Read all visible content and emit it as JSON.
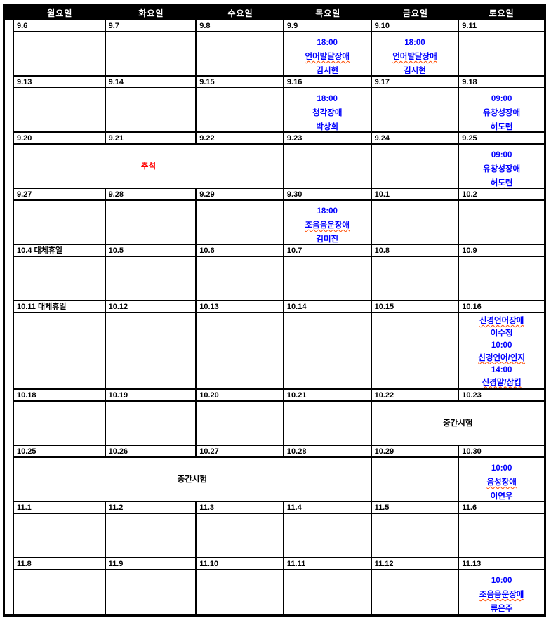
{
  "colors": {
    "appointment_blue": "#0000ff",
    "holiday_red": "#ff0000",
    "text_black": "#000000",
    "header_bg": "#000000",
    "header_text": "#ffffff",
    "squiggle": "#ff4a00",
    "border": "#000000"
  },
  "header": {
    "days": [
      "월요일",
      "화요일",
      "수요일",
      "목요일",
      "금요일",
      "토요일"
    ]
  },
  "weeks": [
    {
      "dates": [
        {
          "text": "9.6",
          "color": "black"
        },
        {
          "text": "9.7",
          "color": "black"
        },
        {
          "text": "9.8",
          "color": "black"
        },
        {
          "text": "9.9",
          "color": "black"
        },
        {
          "text": "9.10",
          "color": "black"
        },
        {
          "text": "9.11",
          "color": "blue"
        }
      ],
      "cells": [
        {
          "span": 1,
          "lines": []
        },
        {
          "span": 1,
          "lines": []
        },
        {
          "span": 1,
          "lines": []
        },
        {
          "span": 1,
          "lines": [
            {
              "text": "18:00",
              "color": "blue"
            },
            {
              "text": "언어발달장애",
              "color": "blue",
              "squiggle": true
            },
            {
              "text": "김시현",
              "color": "blue"
            }
          ]
        },
        {
          "span": 1,
          "lines": [
            {
              "text": "18:00",
              "color": "blue"
            },
            {
              "text": "언어발달장애",
              "color": "blue",
              "squiggle": true
            },
            {
              "text": "김시현",
              "color": "blue"
            }
          ]
        },
        {
          "span": 1,
          "lines": []
        }
      ]
    },
    {
      "dates": [
        {
          "text": "9.13",
          "color": "black"
        },
        {
          "text": "9.14",
          "color": "black"
        },
        {
          "text": "9.15",
          "color": "black"
        },
        {
          "text": "9.16",
          "color": "black"
        },
        {
          "text": "9.17",
          "color": "black"
        },
        {
          "text": "9.18",
          "color": "blue"
        }
      ],
      "cells": [
        {
          "span": 1,
          "lines": []
        },
        {
          "span": 1,
          "lines": []
        },
        {
          "span": 1,
          "lines": []
        },
        {
          "span": 1,
          "lines": [
            {
              "text": "18:00",
              "color": "blue"
            },
            {
              "text": "청각장애",
              "color": "blue"
            },
            {
              "text": "박상희",
              "color": "blue"
            }
          ]
        },
        {
          "span": 1,
          "lines": []
        },
        {
          "span": 1,
          "lines": [
            {
              "text": "09:00",
              "color": "blue"
            },
            {
              "text": "유창성장애",
              "color": "blue"
            },
            {
              "text": "허도련",
              "color": "blue",
              "squiggle": true
            }
          ]
        }
      ]
    },
    {
      "dates": [
        {
          "text": "9.20",
          "color": "red"
        },
        {
          "text": "9.21",
          "color": "red"
        },
        {
          "text": "9.22",
          "color": "red"
        },
        {
          "text": "9.23",
          "color": "black"
        },
        {
          "text": "9.24",
          "color": "black"
        },
        {
          "text": "9.25",
          "color": "blue"
        }
      ],
      "cells": [
        {
          "span": 3,
          "center": true,
          "lines": [
            {
              "text": "추석",
              "color": "red"
            }
          ]
        },
        {
          "span": 1,
          "lines": []
        },
        {
          "span": 1,
          "lines": []
        },
        {
          "span": 1,
          "lines": [
            {
              "text": "09:00",
              "color": "blue"
            },
            {
              "text": "유창성장애",
              "color": "blue"
            },
            {
              "text": "허도련",
              "color": "blue",
              "squiggle": true
            }
          ]
        }
      ]
    },
    {
      "dates": [
        {
          "text": "9.27",
          "color": "black"
        },
        {
          "text": "9.28",
          "color": "black"
        },
        {
          "text": "9.29",
          "color": "black"
        },
        {
          "text": "9.30",
          "color": "black"
        },
        {
          "text": "10.1",
          "color": "black"
        },
        {
          "text": "10.2",
          "color": "blue"
        }
      ],
      "cells": [
        {
          "span": 1,
          "lines": []
        },
        {
          "span": 1,
          "lines": []
        },
        {
          "span": 1,
          "lines": []
        },
        {
          "span": 1,
          "lines": [
            {
              "text": "18:00",
              "color": "blue"
            },
            {
              "text": "조음음운장애",
              "color": "blue",
              "squiggle": true
            },
            {
              "text": "김미진",
              "color": "blue"
            }
          ]
        },
        {
          "span": 1,
          "lines": []
        },
        {
          "span": 1,
          "lines": []
        }
      ]
    },
    {
      "dates": [
        {
          "text": "10.4  대체휴일",
          "color": "red"
        },
        {
          "text": "10.5",
          "color": "black"
        },
        {
          "text": "10.6",
          "color": "black"
        },
        {
          "text": "10.7",
          "color": "black"
        },
        {
          "text": "10.8",
          "color": "black"
        },
        {
          "text": "10.9",
          "color": "blue"
        }
      ],
      "cells": [
        {
          "span": 1,
          "lines": []
        },
        {
          "span": 1,
          "lines": []
        },
        {
          "span": 1,
          "lines": []
        },
        {
          "span": 1,
          "lines": []
        },
        {
          "span": 1,
          "lines": []
        },
        {
          "span": 1,
          "lines": []
        }
      ]
    },
    {
      "tall": true,
      "dates": [
        {
          "text": "10.11  대체휴일",
          "color": "red"
        },
        {
          "text": "10.12",
          "color": "black"
        },
        {
          "text": "10.13",
          "color": "black"
        },
        {
          "text": "10.14",
          "color": "black"
        },
        {
          "text": "10.15",
          "color": "black"
        },
        {
          "text": "10.16",
          "color": "blue"
        }
      ],
      "cells": [
        {
          "span": 1,
          "lines": []
        },
        {
          "span": 1,
          "lines": []
        },
        {
          "span": 1,
          "lines": []
        },
        {
          "span": 1,
          "lines": []
        },
        {
          "span": 1,
          "lines": []
        },
        {
          "span": 1,
          "lines": [
            {
              "text": "신경언어장애",
              "color": "blue",
              "squiggle": true
            },
            {
              "text": "이수정",
              "color": "blue"
            },
            {
              "text": "10:00",
              "color": "blue"
            },
            {
              "text": "신경언어/인지",
              "color": "blue",
              "squiggle": true
            },
            {
              "text": "14:00",
              "color": "blue"
            },
            {
              "text": "신경말/삼킴",
              "color": "blue",
              "squiggle": true
            }
          ]
        }
      ]
    },
    {
      "dates": [
        {
          "text": "10.18",
          "color": "black"
        },
        {
          "text": "10.19",
          "color": "black"
        },
        {
          "text": "10.20",
          "color": "black"
        },
        {
          "text": "10.21",
          "color": "black"
        },
        {
          "text": "10.22",
          "color": "black"
        },
        {
          "text": "10.23",
          "color": "blue"
        }
      ],
      "cells": [
        {
          "span": 1,
          "lines": []
        },
        {
          "span": 1,
          "lines": []
        },
        {
          "span": 1,
          "lines": []
        },
        {
          "span": 1,
          "lines": []
        },
        {
          "span": 2,
          "center": true,
          "lines": [
            {
              "text": "중간시험",
              "color": "black"
            }
          ]
        }
      ]
    },
    {
      "dates": [
        {
          "text": "10.25",
          "color": "black"
        },
        {
          "text": "10.26",
          "color": "black"
        },
        {
          "text": "10.27",
          "color": "black"
        },
        {
          "text": "10.28",
          "color": "black"
        },
        {
          "text": "10.29",
          "color": "black"
        },
        {
          "text": "10.30",
          "color": "blue"
        }
      ],
      "cells": [
        {
          "span": 4,
          "center": true,
          "lines": [
            {
              "text": "중간시험",
              "color": "black"
            }
          ]
        },
        {
          "span": 1,
          "lines": []
        },
        {
          "span": 1,
          "lines": [
            {
              "text": "10:00",
              "color": "blue"
            },
            {
              "text": "음성장애",
              "color": "blue",
              "squiggle": true
            },
            {
              "text": "이연우",
              "color": "blue"
            }
          ]
        }
      ]
    },
    {
      "dates": [
        {
          "text": "11.1",
          "color": "black"
        },
        {
          "text": "11.2",
          "color": "black"
        },
        {
          "text": "11.3",
          "color": "black"
        },
        {
          "text": "11.4",
          "color": "black"
        },
        {
          "text": "11.5",
          "color": "black"
        },
        {
          "text": "11.6",
          "color": "blue"
        }
      ],
      "cells": [
        {
          "span": 1,
          "lines": []
        },
        {
          "span": 1,
          "lines": []
        },
        {
          "span": 1,
          "lines": []
        },
        {
          "span": 1,
          "lines": []
        },
        {
          "span": 1,
          "lines": []
        },
        {
          "span": 1,
          "lines": []
        }
      ]
    },
    {
      "dates": [
        {
          "text": "11.8",
          "color": "black"
        },
        {
          "text": "11.9",
          "color": "black"
        },
        {
          "text": "11.10",
          "color": "black"
        },
        {
          "text": "11.11",
          "color": "black"
        },
        {
          "text": "11.12",
          "color": "black"
        },
        {
          "text": "11.13",
          "color": "blue"
        }
      ],
      "cells": [
        {
          "span": 1,
          "lines": []
        },
        {
          "span": 1,
          "lines": []
        },
        {
          "span": 1,
          "lines": []
        },
        {
          "span": 1,
          "lines": []
        },
        {
          "span": 1,
          "lines": []
        },
        {
          "span": 1,
          "lines": [
            {
              "text": "10:00",
              "color": "blue"
            },
            {
              "text": "조음음운장애",
              "color": "blue",
              "squiggle": true
            },
            {
              "text": "류은주",
              "color": "blue"
            }
          ]
        }
      ]
    }
  ]
}
